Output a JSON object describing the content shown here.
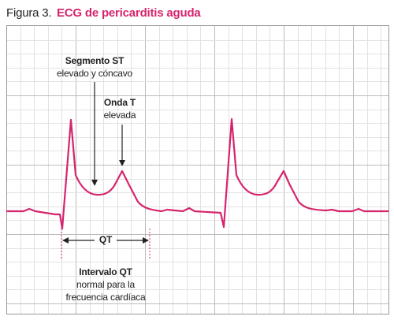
{
  "header": {
    "label": "Figura 3.",
    "title": "ECG de pericarditis aguda"
  },
  "annotations": [
    {
      "lines": [
        "Segmento ST",
        "elevado y cóncavo"
      ]
    },
    {
      "lines": [
        "Onda T",
        "elevada"
      ]
    },
    {
      "lines": [
        "QT"
      ]
    },
    {
      "lines": [
        "Intervalo QT",
        "normal para la",
        "frecuencia cardíaca"
      ]
    }
  ]
}
